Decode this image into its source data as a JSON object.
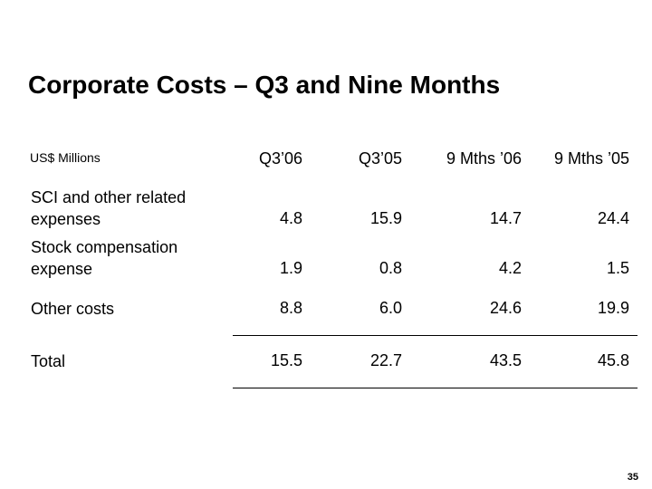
{
  "title": "Corporate Costs – Q3 and Nine Months",
  "units_label": "US$ Millions",
  "columns": [
    "Q3’06",
    "Q3’05",
    "9 Mths ’06",
    "9 Mths ’05"
  ],
  "rows": [
    {
      "label_line1": "SCI and other related",
      "label_line2": "expenses",
      "values": [
        "4.8",
        "15.9",
        "14.7",
        "24.4"
      ]
    },
    {
      "label_line1": "Stock compensation",
      "label_line2": "expense",
      "values": [
        "1.9",
        "0.8",
        "4.2",
        "1.5"
      ]
    },
    {
      "label_line1": "Other costs",
      "values": [
        "8.8",
        "6.0",
        "24.6",
        "19.9"
      ]
    },
    {
      "label_line1": "Total",
      "values": [
        "15.5",
        "22.7",
        "43.5",
        "45.8"
      ]
    }
  ],
  "page_number": "35"
}
